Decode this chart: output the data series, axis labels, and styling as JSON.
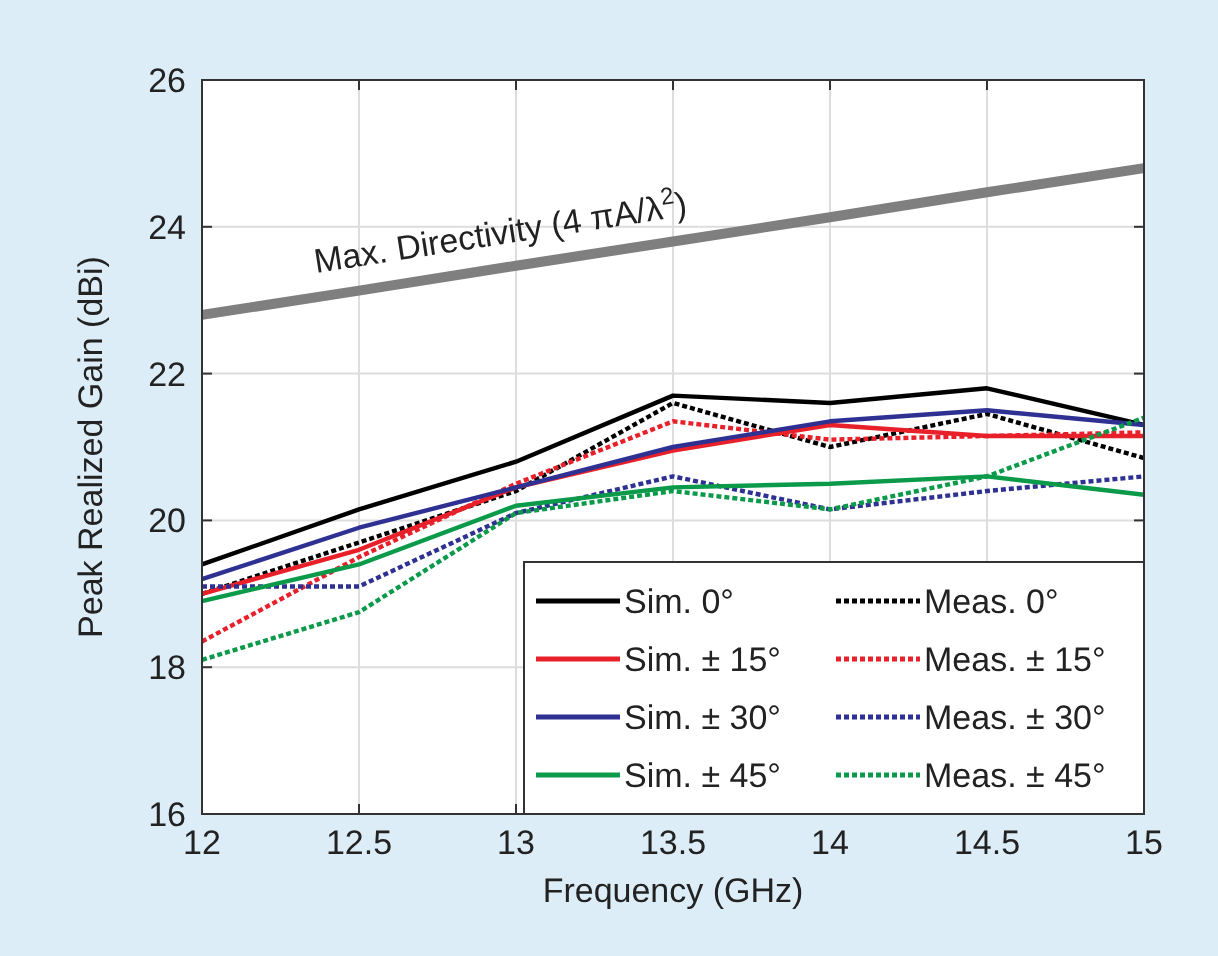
{
  "chart_data": {
    "type": "line",
    "xlabel": "Frequency (GHz)",
    "ylabel": "Peak Realized Gain (dBi)",
    "x": [
      12,
      12.5,
      13,
      13.5,
      14,
      14.5,
      15
    ],
    "xlim": [
      12,
      15
    ],
    "xticks": [
      12,
      12.5,
      13,
      13.5,
      14,
      14.5,
      15
    ],
    "ylim": [
      16,
      26
    ],
    "yticks": [
      16,
      18,
      20,
      22,
      24,
      26
    ],
    "grid": true,
    "legend": "bottom right",
    "marker": "none",
    "annotations": [
      "Max. Directivity (4 πA/λ$^{2}$)"
    ],
    "series": [
      {
        "name": "Sim. 0°",
        "color": "#000000",
        "line_style": "solid",
        "values": [
          19.4,
          20.15,
          20.8,
          21.7,
          21.6,
          21.8,
          21.3
        ]
      },
      {
        "name": "Meas. 0°",
        "color": "#000000",
        "line_style": "dotted",
        "values": [
          19.0,
          19.7,
          20.4,
          21.6,
          21.0,
          21.45,
          20.85
        ]
      },
      {
        "name": "Sim. ± 15°",
        "color": "#e8202a",
        "line_style": "solid",
        "values": [
          19.0,
          19.6,
          20.45,
          20.95,
          21.3,
          21.15,
          21.15
        ]
      },
      {
        "name": "Meas. ± 15°",
        "color": "#e8202a",
        "line_style": "dotted",
        "values": [
          18.35,
          19.5,
          20.5,
          21.35,
          21.1,
          21.15,
          21.2
        ]
      },
      {
        "name": "Sim. ± 30°",
        "color": "#2e3192",
        "line_style": "solid",
        "values": [
          19.2,
          19.9,
          20.45,
          21.0,
          21.35,
          21.5,
          21.3
        ]
      },
      {
        "name": "Meas. ± 30°",
        "color": "#2e3192",
        "line_style": "dotted",
        "values": [
          19.1,
          19.1,
          20.1,
          20.6,
          20.15,
          20.4,
          20.6
        ]
      },
      {
        "name": "Sim. ± 45°",
        "color": "#0a9a4a",
        "line_style": "solid",
        "values": [
          18.9,
          19.4,
          20.2,
          20.45,
          20.5,
          20.6,
          20.35
        ]
      },
      {
        "name": "Meas. ± 45°",
        "color": "#0a9a4a",
        "line_style": "dotted",
        "values": [
          18.1,
          18.75,
          20.1,
          20.4,
          20.15,
          20.6,
          21.4
        ]
      },
      {
        "color": "#7f7f7f",
        "line_style": "solid",
        "values": [
          22.8,
          23.13,
          23.47,
          23.8,
          24.13,
          24.47,
          24.8
        ]
      }
    ]
  }
}
